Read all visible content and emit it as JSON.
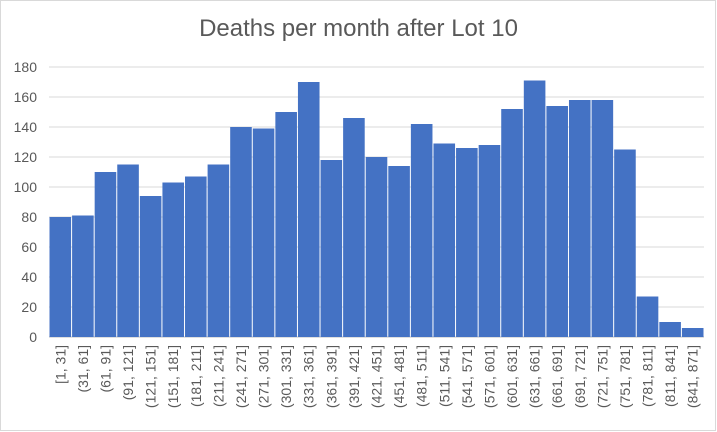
{
  "chart_data": {
    "type": "bar",
    "title": "Deaths per month after Lot 10",
    "xlabel": "",
    "ylabel": "",
    "ylim": [
      0,
      180
    ],
    "yticks": [
      0,
      20,
      40,
      60,
      80,
      100,
      120,
      140,
      160,
      180
    ],
    "grid": true,
    "legend": "none",
    "bar_color": "#4472c4",
    "categories": [
      "[1, 31]",
      "(31, 61]",
      "(61, 91]",
      "(91, 121]",
      "(121, 151]",
      "(151, 181]",
      "(181, 211]",
      "(211, 241]",
      "(241, 271]",
      "(271, 301]",
      "(301, 331]",
      "(331, 361]",
      "(361, 391]",
      "(391, 421]",
      "(421, 451]",
      "(451, 481]",
      "(481, 511]",
      "(511, 541]",
      "(541, 571]",
      "(571, 601]",
      "(601, 631]",
      "(631, 661]",
      "(661, 691]",
      "(691, 721]",
      "(721, 751]",
      "(751, 781]",
      "(781, 811]",
      "(811, 841]",
      "(841, 871]"
    ],
    "values": [
      80,
      81,
      110,
      115,
      94,
      103,
      107,
      115,
      140,
      139,
      150,
      170,
      118,
      146,
      120,
      114,
      142,
      129,
      126,
      128,
      152,
      171,
      154,
      158,
      158,
      125,
      27,
      10,
      6
    ]
  }
}
